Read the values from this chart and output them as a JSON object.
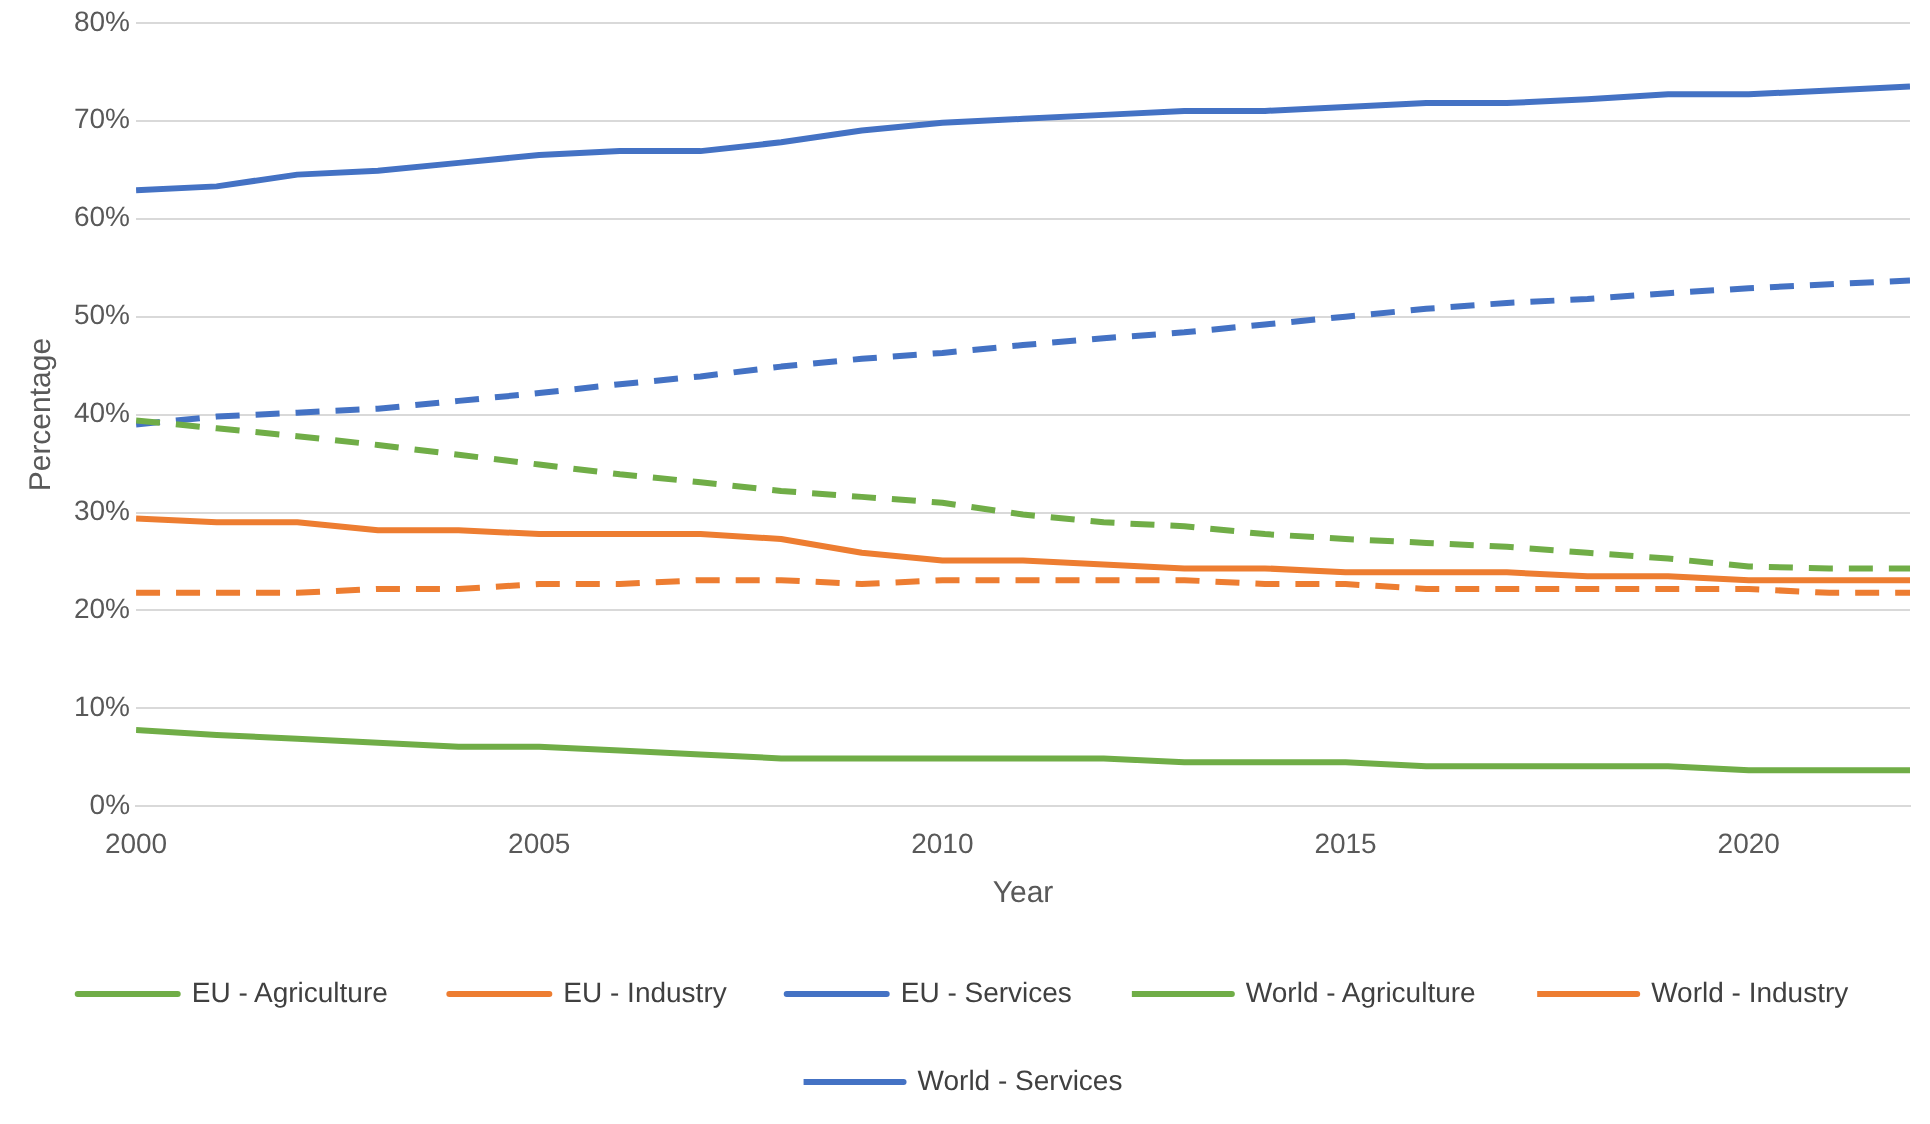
{
  "chart_data": {
    "type": "line",
    "xlabel": "Year",
    "ylabel": "Percentage",
    "x": [
      2000,
      2001,
      2002,
      2003,
      2004,
      2005,
      2006,
      2007,
      2008,
      2009,
      2010,
      2011,
      2012,
      2013,
      2014,
      2015,
      2016,
      2017,
      2018,
      2019,
      2020,
      2021,
      2022
    ],
    "xlim": [
      2000,
      2022
    ],
    "xticks": [
      2000,
      2005,
      2010,
      2015,
      2020
    ],
    "ylim": [
      0,
      80
    ],
    "yticks": [
      {
        "value": 0,
        "label": "0%"
      },
      {
        "value": 10,
        "label": "10%"
      },
      {
        "value": 20,
        "label": "20%"
      },
      {
        "value": 30,
        "label": "30%"
      },
      {
        "value": 40,
        "label": "40%"
      },
      {
        "value": 50,
        "label": "50%"
      },
      {
        "value": 60,
        "label": "60%"
      },
      {
        "value": 70,
        "label": "70%"
      },
      {
        "value": 80,
        "label": "80%"
      }
    ],
    "grid": "y",
    "legend": "bottom",
    "marker": "none",
    "series": [
      {
        "name": "EU - Agriculture",
        "color": "#70ad47",
        "line_style": "solid",
        "values": [
          7.8,
          7.3,
          6.9,
          6.5,
          6.1,
          6.1,
          5.7,
          5.3,
          4.9,
          4.9,
          4.9,
          4.9,
          4.9,
          4.5,
          4.5,
          4.5,
          4.1,
          4.1,
          4.1,
          4.1,
          3.7,
          3.7,
          3.7
        ]
      },
      {
        "name": "EU - Industry",
        "color": "#ed7d31",
        "line_style": "solid",
        "values": [
          29.4,
          29.0,
          29.0,
          28.2,
          28.2,
          27.8,
          27.8,
          27.8,
          27.3,
          25.9,
          25.1,
          25.1,
          24.7,
          24.3,
          24.3,
          23.9,
          23.9,
          23.9,
          23.5,
          23.5,
          23.1,
          23.1,
          23.1
        ]
      },
      {
        "name": "EU - Services",
        "color": "#4472c4",
        "line_style": "solid",
        "values": [
          62.9,
          63.3,
          64.5,
          64.9,
          65.7,
          66.5,
          66.9,
          66.9,
          67.8,
          69.0,
          69.8,
          70.2,
          70.6,
          71.0,
          71.0,
          71.4,
          71.8,
          71.8,
          72.2,
          72.7,
          72.7,
          73.1,
          73.5
        ]
      },
      {
        "name": "World - Agriculture",
        "color": "#70ad47",
        "line_style": "dashed",
        "values": [
          39.4,
          38.6,
          37.8,
          36.9,
          35.9,
          34.9,
          33.9,
          33.1,
          32.2,
          31.6,
          31.0,
          29.8,
          29.0,
          28.6,
          27.8,
          27.3,
          26.9,
          26.5,
          25.9,
          25.3,
          24.5,
          24.3,
          24.3
        ]
      },
      {
        "name": "World - Industry",
        "color": "#ed7d31",
        "line_style": "dashed",
        "values": [
          21.8,
          21.8,
          21.8,
          22.2,
          22.2,
          22.7,
          22.7,
          23.1,
          23.1,
          22.7,
          23.1,
          23.1,
          23.1,
          23.1,
          22.7,
          22.7,
          22.2,
          22.2,
          22.2,
          22.2,
          22.2,
          21.8,
          21.8
        ]
      },
      {
        "name": "World - Services",
        "color": "#4472c4",
        "line_style": "dashed",
        "values": [
          39.0,
          39.8,
          40.2,
          40.6,
          41.4,
          42.2,
          43.1,
          43.9,
          44.9,
          45.7,
          46.3,
          47.1,
          47.8,
          48.4,
          49.2,
          50.0,
          50.8,
          51.4,
          51.8,
          52.4,
          52.9,
          53.3,
          53.7
        ]
      }
    ]
  }
}
